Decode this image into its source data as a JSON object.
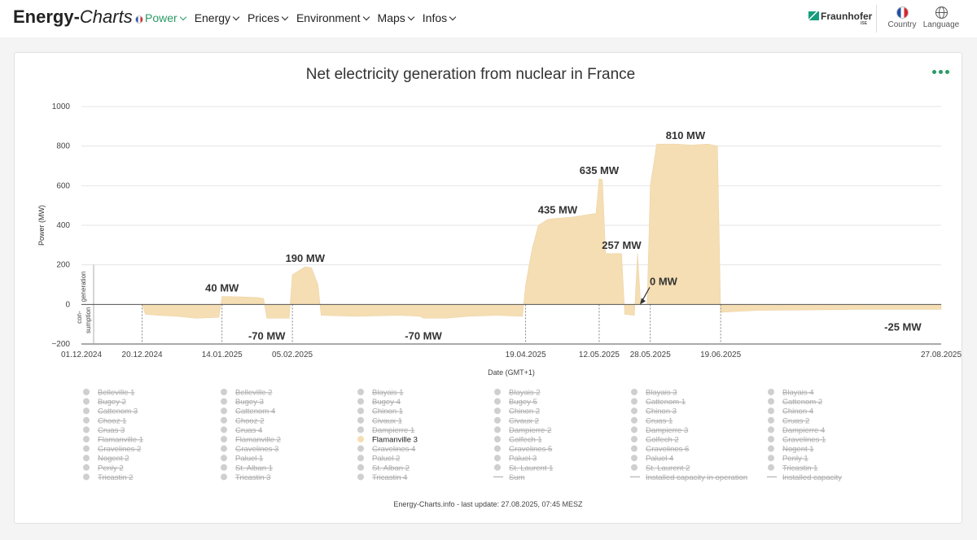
{
  "header": {
    "logo_a": "Energy-",
    "logo_b": "Charts",
    "nav": [
      "Power",
      "Energy",
      "Prices",
      "Environment",
      "Maps",
      "Infos"
    ],
    "partner": "Fraunhofer",
    "partner_sub": "ISE",
    "country_label": "Country",
    "language_label": "Language",
    "accent_color": "#2b9a66"
  },
  "chart_data": {
    "type": "area",
    "title": "Net electricity generation from nuclear in France",
    "ylabel": "Power (MW)",
    "xlabel": "Date (GMT+1)",
    "ylim": [
      -200,
      1000
    ],
    "yticks": [
      -200,
      0,
      200,
      400,
      600,
      800,
      1000
    ],
    "xlim": [
      "2024-12-01",
      "2025-08-27"
    ],
    "xticks": [
      "01.12.2024",
      "20.12.2024",
      "14.01.2025",
      "05.02.2025",
      "19.04.2025",
      "12.05.2025",
      "28.05.2025",
      "19.06.2025",
      "27.08.2025"
    ],
    "grid": true,
    "axis_side_labels": {
      "positive": "generation",
      "negative_1": "con-",
      "negative_2": "sumption"
    },
    "series": [
      {
        "name": "Flamanville 3",
        "color": "#f5deb3",
        "points": [
          [
            "2024-12-01",
            0
          ],
          [
            "2024-12-20",
            0
          ],
          [
            "2024-12-21",
            -50
          ],
          [
            "2024-12-25",
            -55
          ],
          [
            "2024-12-31",
            -60
          ],
          [
            "2025-01-06",
            -70
          ],
          [
            "2025-01-13",
            -65
          ],
          [
            "2025-01-14",
            40
          ],
          [
            "2025-01-20",
            38
          ],
          [
            "2025-01-25",
            35
          ],
          [
            "2025-01-27",
            30
          ],
          [
            "2025-01-28",
            -70
          ],
          [
            "2025-02-04",
            -70
          ],
          [
            "2025-02-05",
            150
          ],
          [
            "2025-02-07",
            170
          ],
          [
            "2025-02-09",
            190
          ],
          [
            "2025-02-11",
            185
          ],
          [
            "2025-02-13",
            100
          ],
          [
            "2025-02-14",
            -55
          ],
          [
            "2025-02-25",
            -60
          ],
          [
            "2025-03-10",
            -55
          ],
          [
            "2025-03-17",
            -60
          ],
          [
            "2025-03-18",
            -70
          ],
          [
            "2025-03-25",
            -70
          ],
          [
            "2025-04-01",
            -60
          ],
          [
            "2025-04-10",
            -55
          ],
          [
            "2025-04-18",
            -60
          ],
          [
            "2025-04-19",
            100
          ],
          [
            "2025-04-21",
            280
          ],
          [
            "2025-04-23",
            400
          ],
          [
            "2025-04-26",
            430
          ],
          [
            "2025-04-29",
            435
          ],
          [
            "2025-05-03",
            440
          ],
          [
            "2025-05-07",
            450
          ],
          [
            "2025-05-11",
            460
          ],
          [
            "2025-05-12",
            635
          ],
          [
            "2025-05-13",
            630
          ],
          [
            "2025-05-14",
            257
          ],
          [
            "2025-05-19",
            257
          ],
          [
            "2025-05-20",
            -50
          ],
          [
            "2025-05-23",
            -55
          ],
          [
            "2025-05-24",
            257
          ],
          [
            "2025-05-25",
            0
          ],
          [
            "2025-05-27",
            0
          ],
          [
            "2025-05-28",
            600
          ],
          [
            "2025-05-30",
            810
          ],
          [
            "2025-06-05",
            810
          ],
          [
            "2025-06-10",
            805
          ],
          [
            "2025-06-15",
            810
          ],
          [
            "2025-06-18",
            800
          ],
          [
            "2025-06-19",
            -40
          ],
          [
            "2025-07-01",
            -30
          ],
          [
            "2025-07-15",
            -28
          ],
          [
            "2025-08-01",
            -25
          ],
          [
            "2025-08-15",
            -25
          ],
          [
            "2025-08-27",
            -25
          ]
        ]
      }
    ],
    "annotations": [
      {
        "label": "40 MW",
        "x": "2025-01-14",
        "y": 40
      },
      {
        "label": "-70 MW",
        "x": "2025-01-28",
        "y": -70
      },
      {
        "label": "190 MW",
        "x": "2025-02-09",
        "y": 190
      },
      {
        "label": "-70 MW",
        "x": "2025-03-18",
        "y": -70
      },
      {
        "label": "435 MW",
        "x": "2025-04-29",
        "y": 435
      },
      {
        "label": "635 MW",
        "x": "2025-05-12",
        "y": 635
      },
      {
        "label": "257 MW",
        "x": "2025-05-19",
        "y": 257
      },
      {
        "label": "0 MW",
        "x": "2025-05-25",
        "y": 0
      },
      {
        "label": "810 MW",
        "x": "2025-06-08",
        "y": 810
      },
      {
        "label": "-25 MW",
        "x": "2025-08-15",
        "y": -25
      }
    ],
    "legend": {
      "placement": "bottom",
      "columns": [
        [
          "Belleville 1",
          "Bugey 2",
          "Cattenom 3",
          "Chooz 1",
          "Cruas 3",
          "Flamanville 1",
          "Gravelines 2",
          "Nogent 2",
          "Penly 2",
          "Tricastin 2"
        ],
        [
          "Belleville 2",
          "Bugey 3",
          "Cattenom 4",
          "Chooz 2",
          "Cruas 4",
          "Flamanville 2",
          "Gravelines 3",
          "Paluel 1",
          "St. Alban 1",
          "Tricastin 3"
        ],
        [
          "Blayais 1",
          "Bugey 4",
          "Chinon 1",
          "Civaux 1",
          "Dampierre 1",
          "Flamanville 3",
          "Gravelines 4",
          "Paluel 2",
          "St. Alban 2",
          "Tricastin 4"
        ],
        [
          "Blayais 2",
          "Bugey 5",
          "Chinon 2",
          "Civaux 2",
          "Dampierre 2",
          "Golfech 1",
          "Gravelines 5",
          "Paluel 3",
          "St. Laurent 1",
          "Sum"
        ],
        [
          "Blayais 3",
          "Cattenom 1",
          "Chinon 3",
          "Cruas 1",
          "Dampierre 3",
          "Golfech 2",
          "Gravelines 6",
          "Paluel 4",
          "St. Laurent 2",
          "Installed capacity in operation"
        ],
        [
          "Blayais 4",
          "Cattenom 2",
          "Chinon 4",
          "Cruas 2",
          "Dampierre 4",
          "Gravelines 1",
          "Nogent 1",
          "Penly 1",
          "Tricastin 1",
          "Installed capacity"
        ]
      ],
      "active": "Flamanville 3",
      "line_items": [
        "Sum",
        "Installed capacity in operation",
        "Installed capacity"
      ]
    }
  },
  "footer_note": "Energy-Charts.info - last update: 27.08.2025, 07:45 MESZ"
}
